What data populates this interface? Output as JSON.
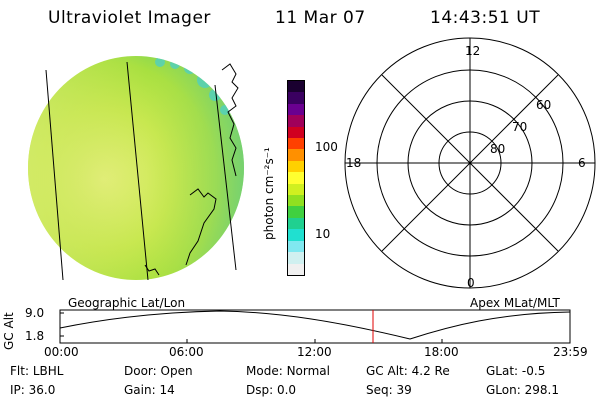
{
  "header": {
    "instrument": "Ultraviolet Imager",
    "date": "11 Mar 07",
    "time": "14:43:51 UT"
  },
  "colorbar": {
    "unit_label": "photon cm⁻²s⁻¹",
    "ticks": [
      "100",
      "10"
    ],
    "colors": [
      "#1a0030",
      "#3a0060",
      "#6a0090",
      "#a0005a",
      "#d00020",
      "#ff4000",
      "#ff9000",
      "#ffd000",
      "#ffff30",
      "#d0f020",
      "#90e020",
      "#40d040",
      "#20d090",
      "#20e0d0",
      "#80e8f0",
      "#d0f0f0",
      "#f0f0f0"
    ]
  },
  "polar_plot": {
    "mlt_labels": {
      "top": "12",
      "left": "18",
      "right": "6",
      "bottom": "0"
    },
    "lat_labels": [
      "60",
      "70",
      "80"
    ]
  },
  "altitude_strip": {
    "axis_title": "GC Alt",
    "y_ticks": [
      "9.0",
      "1.8"
    ],
    "left_label": "Geographic Lat/Lon",
    "right_label": "Apex MLat/MLT",
    "x_ticks": [
      "00:00",
      "06:00",
      "12:00",
      "18:00",
      "23:59"
    ],
    "marker_hour": 14.73
  },
  "status": [
    [
      {
        "k": "Flt:",
        "v": "LBHL"
      },
      {
        "k": "Door:",
        "v": "Open"
      },
      {
        "k": "Mode:",
        "v": "Normal"
      },
      {
        "k": "GC Alt:",
        "v": "4.2 Re"
      },
      {
        "k": "GLat:",
        "v": "-0.5"
      }
    ],
    [
      {
        "k": "IP:",
        "v": "36.0"
      },
      {
        "k": "Gain:",
        "v": "14"
      },
      {
        "k": "Dsp:",
        "v": "0.0"
      },
      {
        "k": "Seq:",
        "v": "39"
      },
      {
        "k": "GLon:",
        "v": "298.1"
      }
    ]
  ]
}
